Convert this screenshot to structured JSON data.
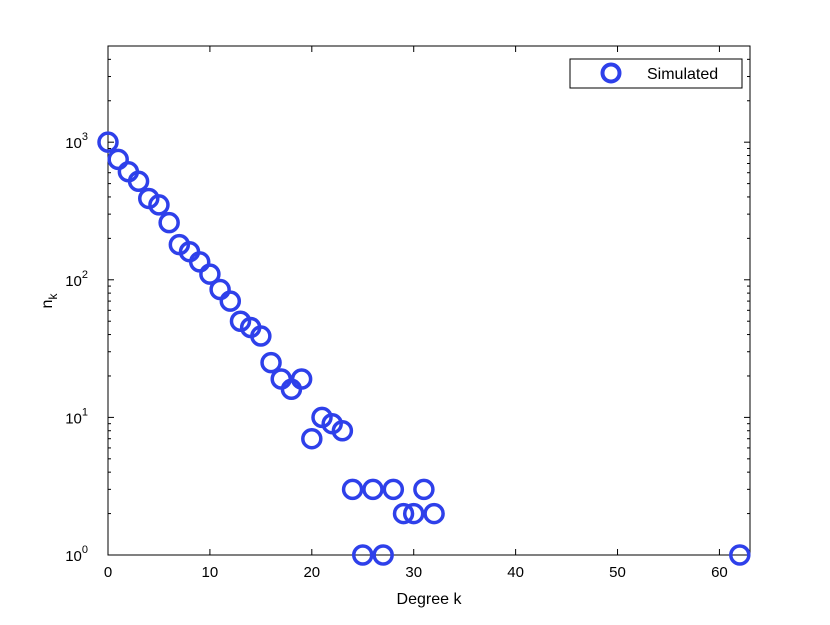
{
  "chart_data": {
    "type": "scatter",
    "title": "",
    "xlabel": "Degree k",
    "ylabel_main": "n",
    "ylabel_sub": "k",
    "xlim": [
      0,
      63
    ],
    "ylim": [
      1,
      5000
    ],
    "yscale": "log",
    "grid": false,
    "legend_position": "top-right",
    "x_ticks": [
      0,
      10,
      20,
      30,
      40,
      50,
      60
    ],
    "y_ticks": [
      {
        "value": 1,
        "base": "10",
        "exp": "0"
      },
      {
        "value": 10,
        "base": "10",
        "exp": "1"
      },
      {
        "value": 100,
        "base": "10",
        "exp": "2"
      },
      {
        "value": 1000,
        "base": "10",
        "exp": "3"
      }
    ],
    "series": [
      {
        "name": "Simulated",
        "color": "#2e40ea",
        "marker": "circle-open",
        "points": [
          [
            0,
            1000
          ],
          [
            1,
            750
          ],
          [
            2,
            610
          ],
          [
            3,
            520
          ],
          [
            4,
            390
          ],
          [
            5,
            350
          ],
          [
            6,
            260
          ],
          [
            7,
            180
          ],
          [
            8,
            160
          ],
          [
            9,
            135
          ],
          [
            10,
            110
          ],
          [
            11,
            85
          ],
          [
            12,
            70
          ],
          [
            13,
            50
          ],
          [
            14,
            45
          ],
          [
            15,
            39
          ],
          [
            16,
            25
          ],
          [
            17,
            19
          ],
          [
            18,
            16
          ],
          [
            19,
            19
          ],
          [
            20,
            7
          ],
          [
            21,
            10
          ],
          [
            22,
            9
          ],
          [
            23,
            8
          ],
          [
            24,
            3
          ],
          [
            25,
            1
          ],
          [
            26,
            3
          ],
          [
            27,
            1
          ],
          [
            28,
            3
          ],
          [
            29,
            2
          ],
          [
            30,
            2
          ],
          [
            31,
            3
          ],
          [
            32,
            2
          ],
          [
            62,
            1
          ]
        ]
      }
    ]
  }
}
